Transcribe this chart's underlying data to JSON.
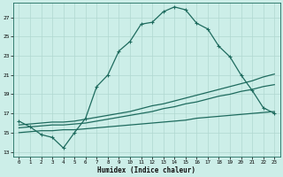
{
  "xlabel": "Humidex (Indice chaleur)",
  "bg_color": "#cceee8",
  "grid_color": "#b0d8d0",
  "line_color": "#1e6b5e",
  "xlim": [
    -0.5,
    23.5
  ],
  "ylim": [
    12.5,
    28.5
  ],
  "xticks": [
    0,
    1,
    2,
    3,
    4,
    5,
    6,
    7,
    8,
    9,
    10,
    11,
    12,
    13,
    14,
    15,
    16,
    17,
    18,
    19,
    20,
    21,
    22,
    23
  ],
  "yticks": [
    13,
    15,
    17,
    19,
    21,
    23,
    25,
    27
  ],
  "main_x": [
    0,
    1,
    2,
    3,
    4,
    5,
    6,
    7,
    8,
    9,
    10,
    11,
    12,
    13,
    14,
    15,
    16,
    17,
    18,
    19,
    20,
    21,
    22,
    23
  ],
  "main_y": [
    16.2,
    15.6,
    14.8,
    14.5,
    13.4,
    15.0,
    16.5,
    19.8,
    21.0,
    23.5,
    24.5,
    26.3,
    26.5,
    27.6,
    28.1,
    27.8,
    26.4,
    25.8,
    24.0,
    22.9,
    21.0,
    19.4,
    17.6,
    17.0
  ],
  "line2_x": [
    0,
    1,
    2,
    3,
    4,
    5,
    6,
    7,
    8,
    9,
    10,
    11,
    12,
    13,
    14,
    15,
    16,
    17,
    18,
    19,
    20,
    21,
    22,
    23
  ],
  "line2_y": [
    15.8,
    15.9,
    16.0,
    16.1,
    16.1,
    16.2,
    16.4,
    16.6,
    16.8,
    17.0,
    17.2,
    17.5,
    17.8,
    18.0,
    18.3,
    18.6,
    18.9,
    19.2,
    19.5,
    19.8,
    20.1,
    20.4,
    20.8,
    21.1
  ],
  "line3_x": [
    0,
    1,
    2,
    3,
    4,
    5,
    6,
    7,
    8,
    9,
    10,
    11,
    12,
    13,
    14,
    15,
    16,
    17,
    18,
    19,
    20,
    21,
    22,
    23
  ],
  "line3_y": [
    15.5,
    15.6,
    15.7,
    15.8,
    15.8,
    15.9,
    16.0,
    16.2,
    16.4,
    16.6,
    16.8,
    17.0,
    17.2,
    17.5,
    17.7,
    18.0,
    18.2,
    18.5,
    18.8,
    19.0,
    19.3,
    19.5,
    19.8,
    20.0
  ],
  "line4_x": [
    0,
    1,
    2,
    3,
    4,
    5,
    6,
    7,
    8,
    9,
    10,
    11,
    12,
    13,
    14,
    15,
    16,
    17,
    18,
    19,
    20,
    21,
    22,
    23
  ],
  "line4_y": [
    15.0,
    15.1,
    15.2,
    15.2,
    15.3,
    15.3,
    15.4,
    15.5,
    15.6,
    15.7,
    15.8,
    15.9,
    16.0,
    16.1,
    16.2,
    16.3,
    16.5,
    16.6,
    16.7,
    16.8,
    16.9,
    17.0,
    17.1,
    17.2
  ],
  "figsize": [
    3.2,
    2.0
  ],
  "dpi": 100
}
